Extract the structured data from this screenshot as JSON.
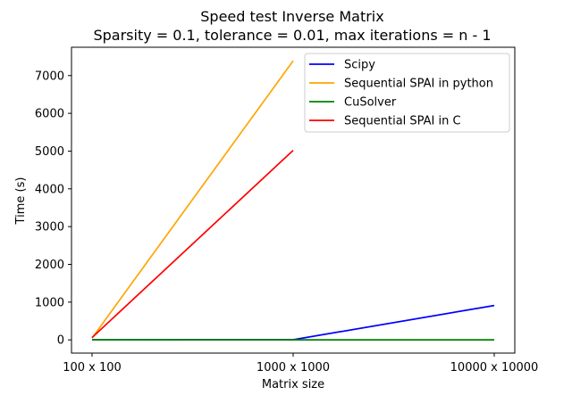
{
  "chart_data": {
    "type": "line",
    "title": "Speed test Inverse Matrix",
    "subtitle": "Sparsity = 0.1, tolerance = 0.01, max iterations = n - 1",
    "xlabel": "Matrix size",
    "ylabel": "Time (s)",
    "categories": [
      "100 x 100",
      "1000 x 1000",
      "10000 x 10000"
    ],
    "ylim": [
      -350,
      7750
    ],
    "yticks": [
      0,
      1000,
      2000,
      3000,
      4000,
      5000,
      6000,
      7000
    ],
    "grid": false,
    "legend_position": "top-right",
    "series": [
      {
        "name": "Scipy",
        "color": "#0000ff",
        "values": [
          2,
          5,
          910
        ]
      },
      {
        "name": "Sequential SPAI in python",
        "color": "#ffa500",
        "values": [
          50,
          7390,
          null
        ]
      },
      {
        "name": "CuSolver",
        "color": "#008000",
        "values": [
          1,
          2,
          3
        ]
      },
      {
        "name": "Sequential SPAI in C",
        "color": "#ff0000",
        "values": [
          60,
          5020,
          null
        ]
      }
    ]
  }
}
